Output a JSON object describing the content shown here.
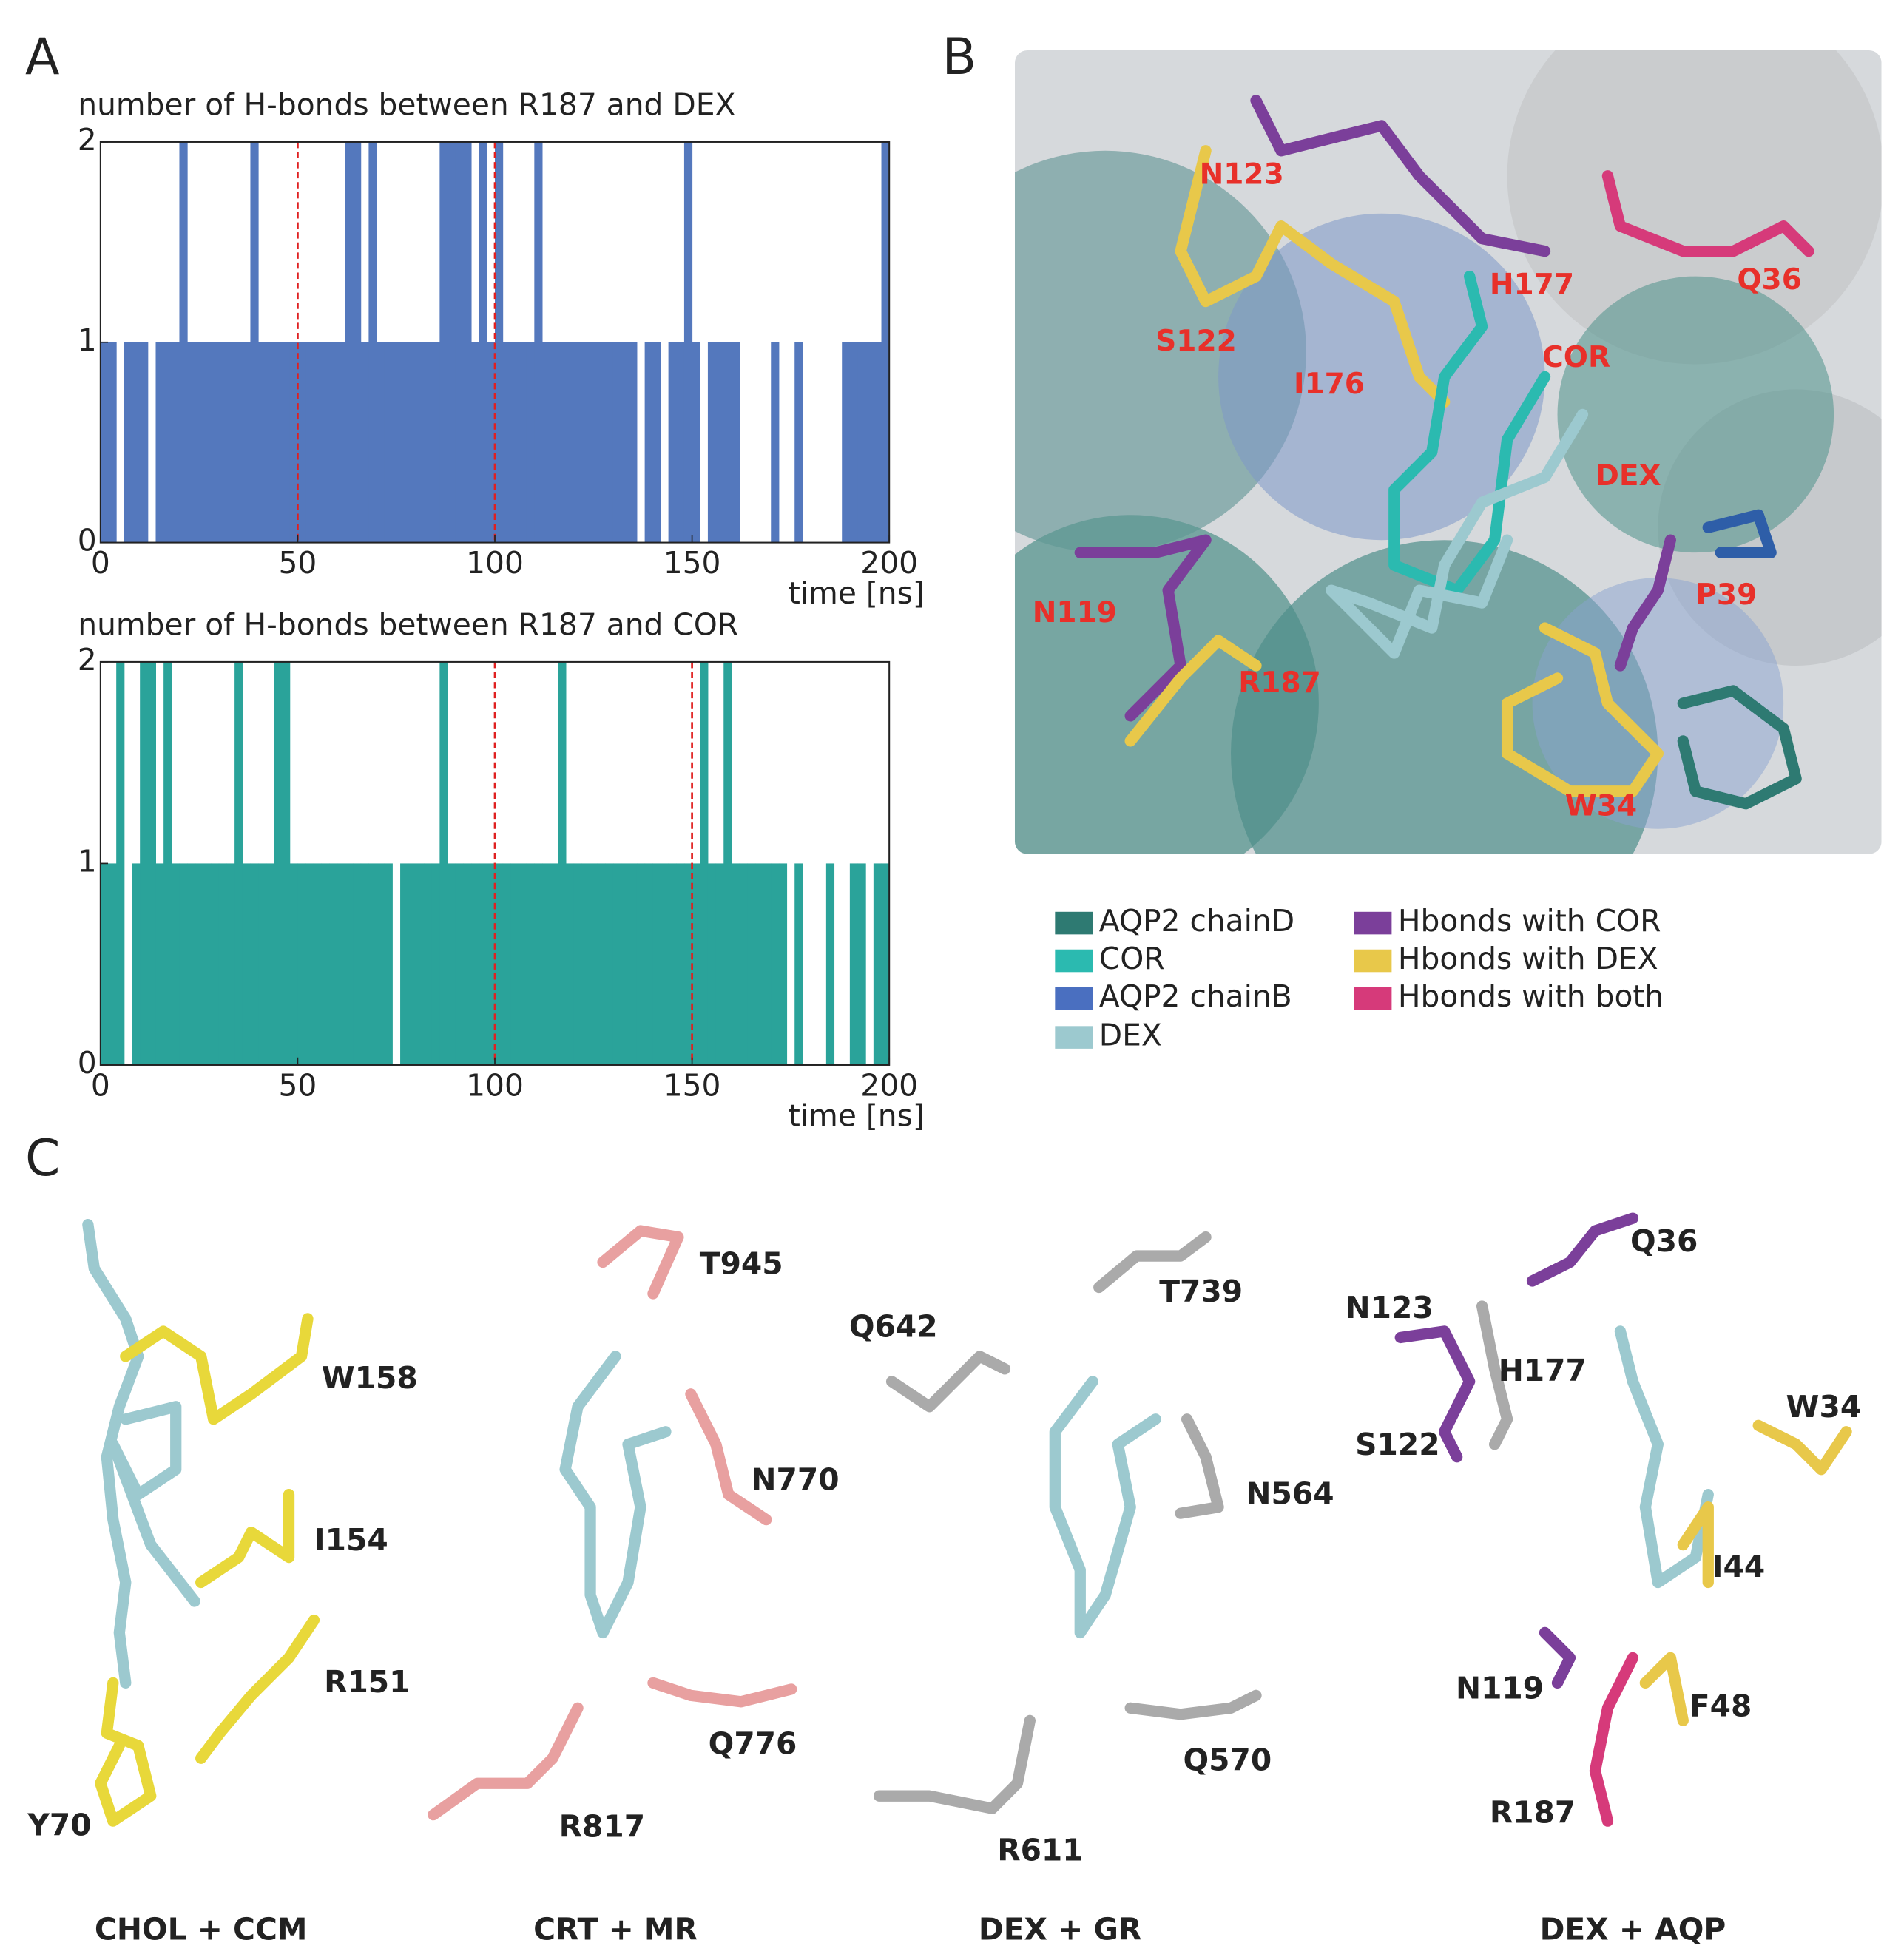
{
  "panel_labels": [
    "A",
    "B",
    "C"
  ],
  "chart_data": [
    {
      "type": "bar",
      "title": "number of H-bonds between  R187 and DEX",
      "x_label": "time [ns]",
      "color": "#5478bd",
      "x": [
        0,
        2,
        4,
        6,
        8,
        10,
        12,
        14,
        16,
        18,
        20,
        22,
        24,
        26,
        28,
        30,
        32,
        34,
        36,
        38,
        40,
        42,
        44,
        46,
        48,
        50,
        52,
        54,
        56,
        58,
        60,
        62,
        64,
        66,
        68,
        70,
        72,
        74,
        76,
        78,
        80,
        82,
        84,
        86,
        88,
        90,
        92,
        94,
        96,
        98,
        100,
        102,
        104,
        106,
        108,
        110,
        112,
        114,
        116,
        118,
        120,
        122,
        124,
        126,
        128,
        130,
        132,
        134,
        136,
        138,
        140,
        142,
        144,
        146,
        148,
        150,
        152,
        154,
        156,
        158,
        160,
        162,
        164,
        166,
        168,
        170,
        172,
        174,
        176,
        178,
        180,
        182,
        184,
        186,
        188,
        190,
        192,
        194,
        196,
        198
      ],
      "values": [
        1,
        1,
        0,
        1,
        1,
        1,
        0,
        1,
        1,
        1,
        2,
        1,
        1,
        1,
        1,
        1,
        1,
        1,
        1,
        2,
        1,
        1,
        1,
        1,
        1,
        1,
        1,
        1,
        1,
        1,
        1,
        2,
        2,
        1,
        2,
        1,
        1,
        1,
        1,
        1,
        1,
        1,
        1,
        2,
        2,
        2,
        2,
        1,
        2,
        1,
        2,
        1,
        1,
        1,
        1,
        2,
        1,
        1,
        1,
        1,
        1,
        1,
        1,
        1,
        1,
        1,
        1,
        1,
        0,
        1,
        1,
        0,
        1,
        1,
        2,
        1,
        0,
        1,
        1,
        1,
        1,
        0,
        0,
        0,
        0,
        1,
        0,
        0,
        1,
        0,
        0,
        0,
        0,
        0,
        1,
        1,
        1,
        1,
        1,
        2
      ],
      "xlim": [
        0,
        200
      ],
      "ylim": [
        0,
        2
      ],
      "xticks": [
        0,
        50,
        100,
        150,
        200
      ],
      "yticks": [
        0,
        1,
        2
      ],
      "reference_lines": [
        50,
        100
      ],
      "reference_color": "#e02020"
    },
    {
      "type": "bar",
      "title": "number of H-bonds between  R187 and COR",
      "x_label": "time [ns]",
      "color": "#2aa39a",
      "x": [
        0,
        2,
        4,
        6,
        8,
        10,
        12,
        14,
        16,
        18,
        20,
        22,
        24,
        26,
        28,
        30,
        32,
        34,
        36,
        38,
        40,
        42,
        44,
        46,
        48,
        50,
        52,
        54,
        56,
        58,
        60,
        62,
        64,
        66,
        68,
        70,
        72,
        74,
        76,
        78,
        80,
        82,
        84,
        86,
        88,
        90,
        92,
        94,
        96,
        98,
        100,
        102,
        104,
        106,
        108,
        110,
        112,
        114,
        116,
        118,
        120,
        122,
        124,
        126,
        128,
        130,
        132,
        134,
        136,
        138,
        140,
        142,
        144,
        146,
        148,
        150,
        152,
        154,
        156,
        158,
        160,
        162,
        164,
        166,
        168,
        170,
        172,
        174,
        176,
        178,
        180,
        182,
        184,
        186,
        188,
        190,
        192,
        194,
        196,
        198
      ],
      "values": [
        1,
        1,
        2,
        0,
        1,
        2,
        2,
        1,
        2,
        1,
        1,
        1,
        1,
        1,
        1,
        1,
        1,
        2,
        1,
        1,
        1,
        1,
        2,
        2,
        1,
        1,
        1,
        1,
        1,
        1,
        1,
        1,
        1,
        1,
        1,
        1,
        1,
        0,
        1,
        1,
        1,
        1,
        1,
        2,
        1,
        1,
        1,
        1,
        1,
        1,
        1,
        1,
        1,
        1,
        1,
        1,
        1,
        1,
        2,
        1,
        1,
        1,
        1,
        1,
        1,
        1,
        1,
        1,
        1,
        1,
        1,
        1,
        1,
        1,
        1,
        1,
        2,
        1,
        1,
        2,
        1,
        1,
        1,
        1,
        1,
        1,
        1,
        0,
        1,
        0,
        0,
        0,
        1,
        0,
        0,
        1,
        1,
        0,
        1,
        1
      ],
      "xlim": [
        0,
        200
      ],
      "ylim": [
        0,
        2
      ],
      "xticks": [
        0,
        50,
        100,
        150,
        200
      ],
      "yticks": [
        0,
        1,
        2
      ],
      "reference_lines": [
        100,
        150
      ],
      "reference_color": "#e02020"
    }
  ],
  "panel_b": {
    "labels": [
      "N123",
      "H177",
      "Q36",
      "S122",
      "COR",
      "I176",
      "DEX",
      "N119",
      "P39",
      "R187",
      "W34"
    ],
    "legend": [
      {
        "label": "AQP2 chainD",
        "color": "#2e7a72"
      },
      {
        "label": "COR",
        "color": "#2bbab0"
      },
      {
        "label": "AQP2 chainB",
        "color": "#4a6fc0"
      },
      {
        "label": "DEX",
        "color": "#9cc9cf"
      },
      {
        "label": "Hbonds with COR",
        "color": "#7b3f9a"
      },
      {
        "label": "Hbonds with DEX",
        "color": "#e8c84a"
      },
      {
        "label": "Hbonds with both",
        "color": "#d63a7a"
      }
    ]
  },
  "panel_c": {
    "subpanels": [
      {
        "caption": "CHOL + CCM",
        "labels": [
          "W158",
          "I154",
          "R151",
          "Y70"
        ]
      },
      {
        "caption": "CRT + MR",
        "labels": [
          "T945",
          "N770",
          "Q776",
          "R817"
        ]
      },
      {
        "caption": "DEX + GR",
        "labels": [
          "Q642",
          "T739",
          "N564",
          "Q570",
          "R611"
        ]
      },
      {
        "caption": "DEX + AQP",
        "labels": [
          "Q36",
          "N123",
          "H177",
          "S122",
          "W34",
          "I44",
          "N119",
          "F48",
          "R187"
        ]
      }
    ]
  }
}
